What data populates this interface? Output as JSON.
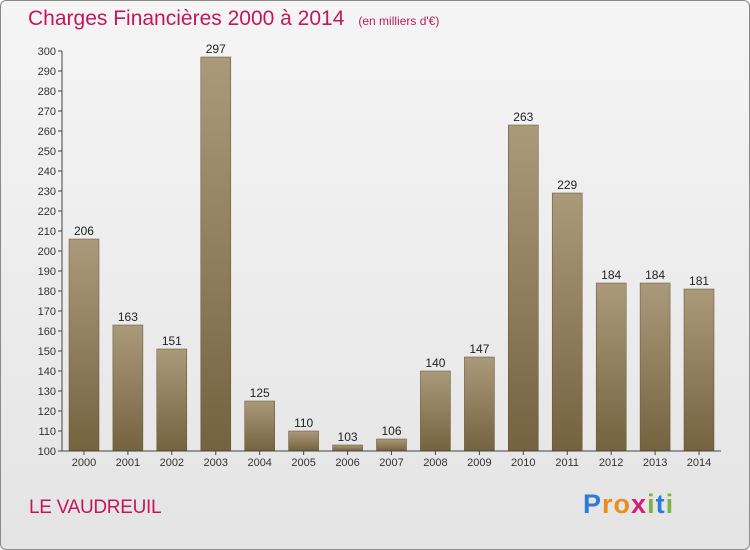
{
  "header": {
    "title": "Charges Financières 2000 à 2014",
    "unit_note": "(en milliers d'€)"
  },
  "commune": "LE VAUDREUIL",
  "logo": {
    "letters": [
      {
        "ch": "P",
        "color": "#2e7bd6"
      },
      {
        "ch": "r",
        "color": "#e98d1e"
      },
      {
        "ch": "o",
        "color": "#e98d1e"
      },
      {
        "ch": "x",
        "color": "#d81b7a"
      },
      {
        "ch": "i",
        "color": "#7cb342"
      },
      {
        "ch": "t",
        "color": "#2e7bd6"
      },
      {
        "ch": "i",
        "color": "#7cb342"
      }
    ]
  },
  "chart_data": {
    "type": "bar",
    "categories": [
      "2000",
      "2001",
      "2002",
      "2003",
      "2004",
      "2005",
      "2006",
      "2007",
      "2008",
      "2009",
      "2010",
      "2011",
      "2012",
      "2013",
      "2014"
    ],
    "values": [
      206,
      163,
      151,
      297,
      125,
      110,
      103,
      106,
      140,
      147,
      263,
      229,
      184,
      184,
      181
    ],
    "ylim": [
      100,
      300
    ],
    "yticks": [
      100,
      110,
      120,
      130,
      140,
      150,
      160,
      170,
      180,
      190,
      200,
      210,
      220,
      230,
      240,
      250,
      260,
      270,
      280,
      290,
      300
    ],
    "grid": false,
    "bar_color_top": "#ab9a7a",
    "bar_color_bottom": "#75623f",
    "label_color": "#222222"
  }
}
